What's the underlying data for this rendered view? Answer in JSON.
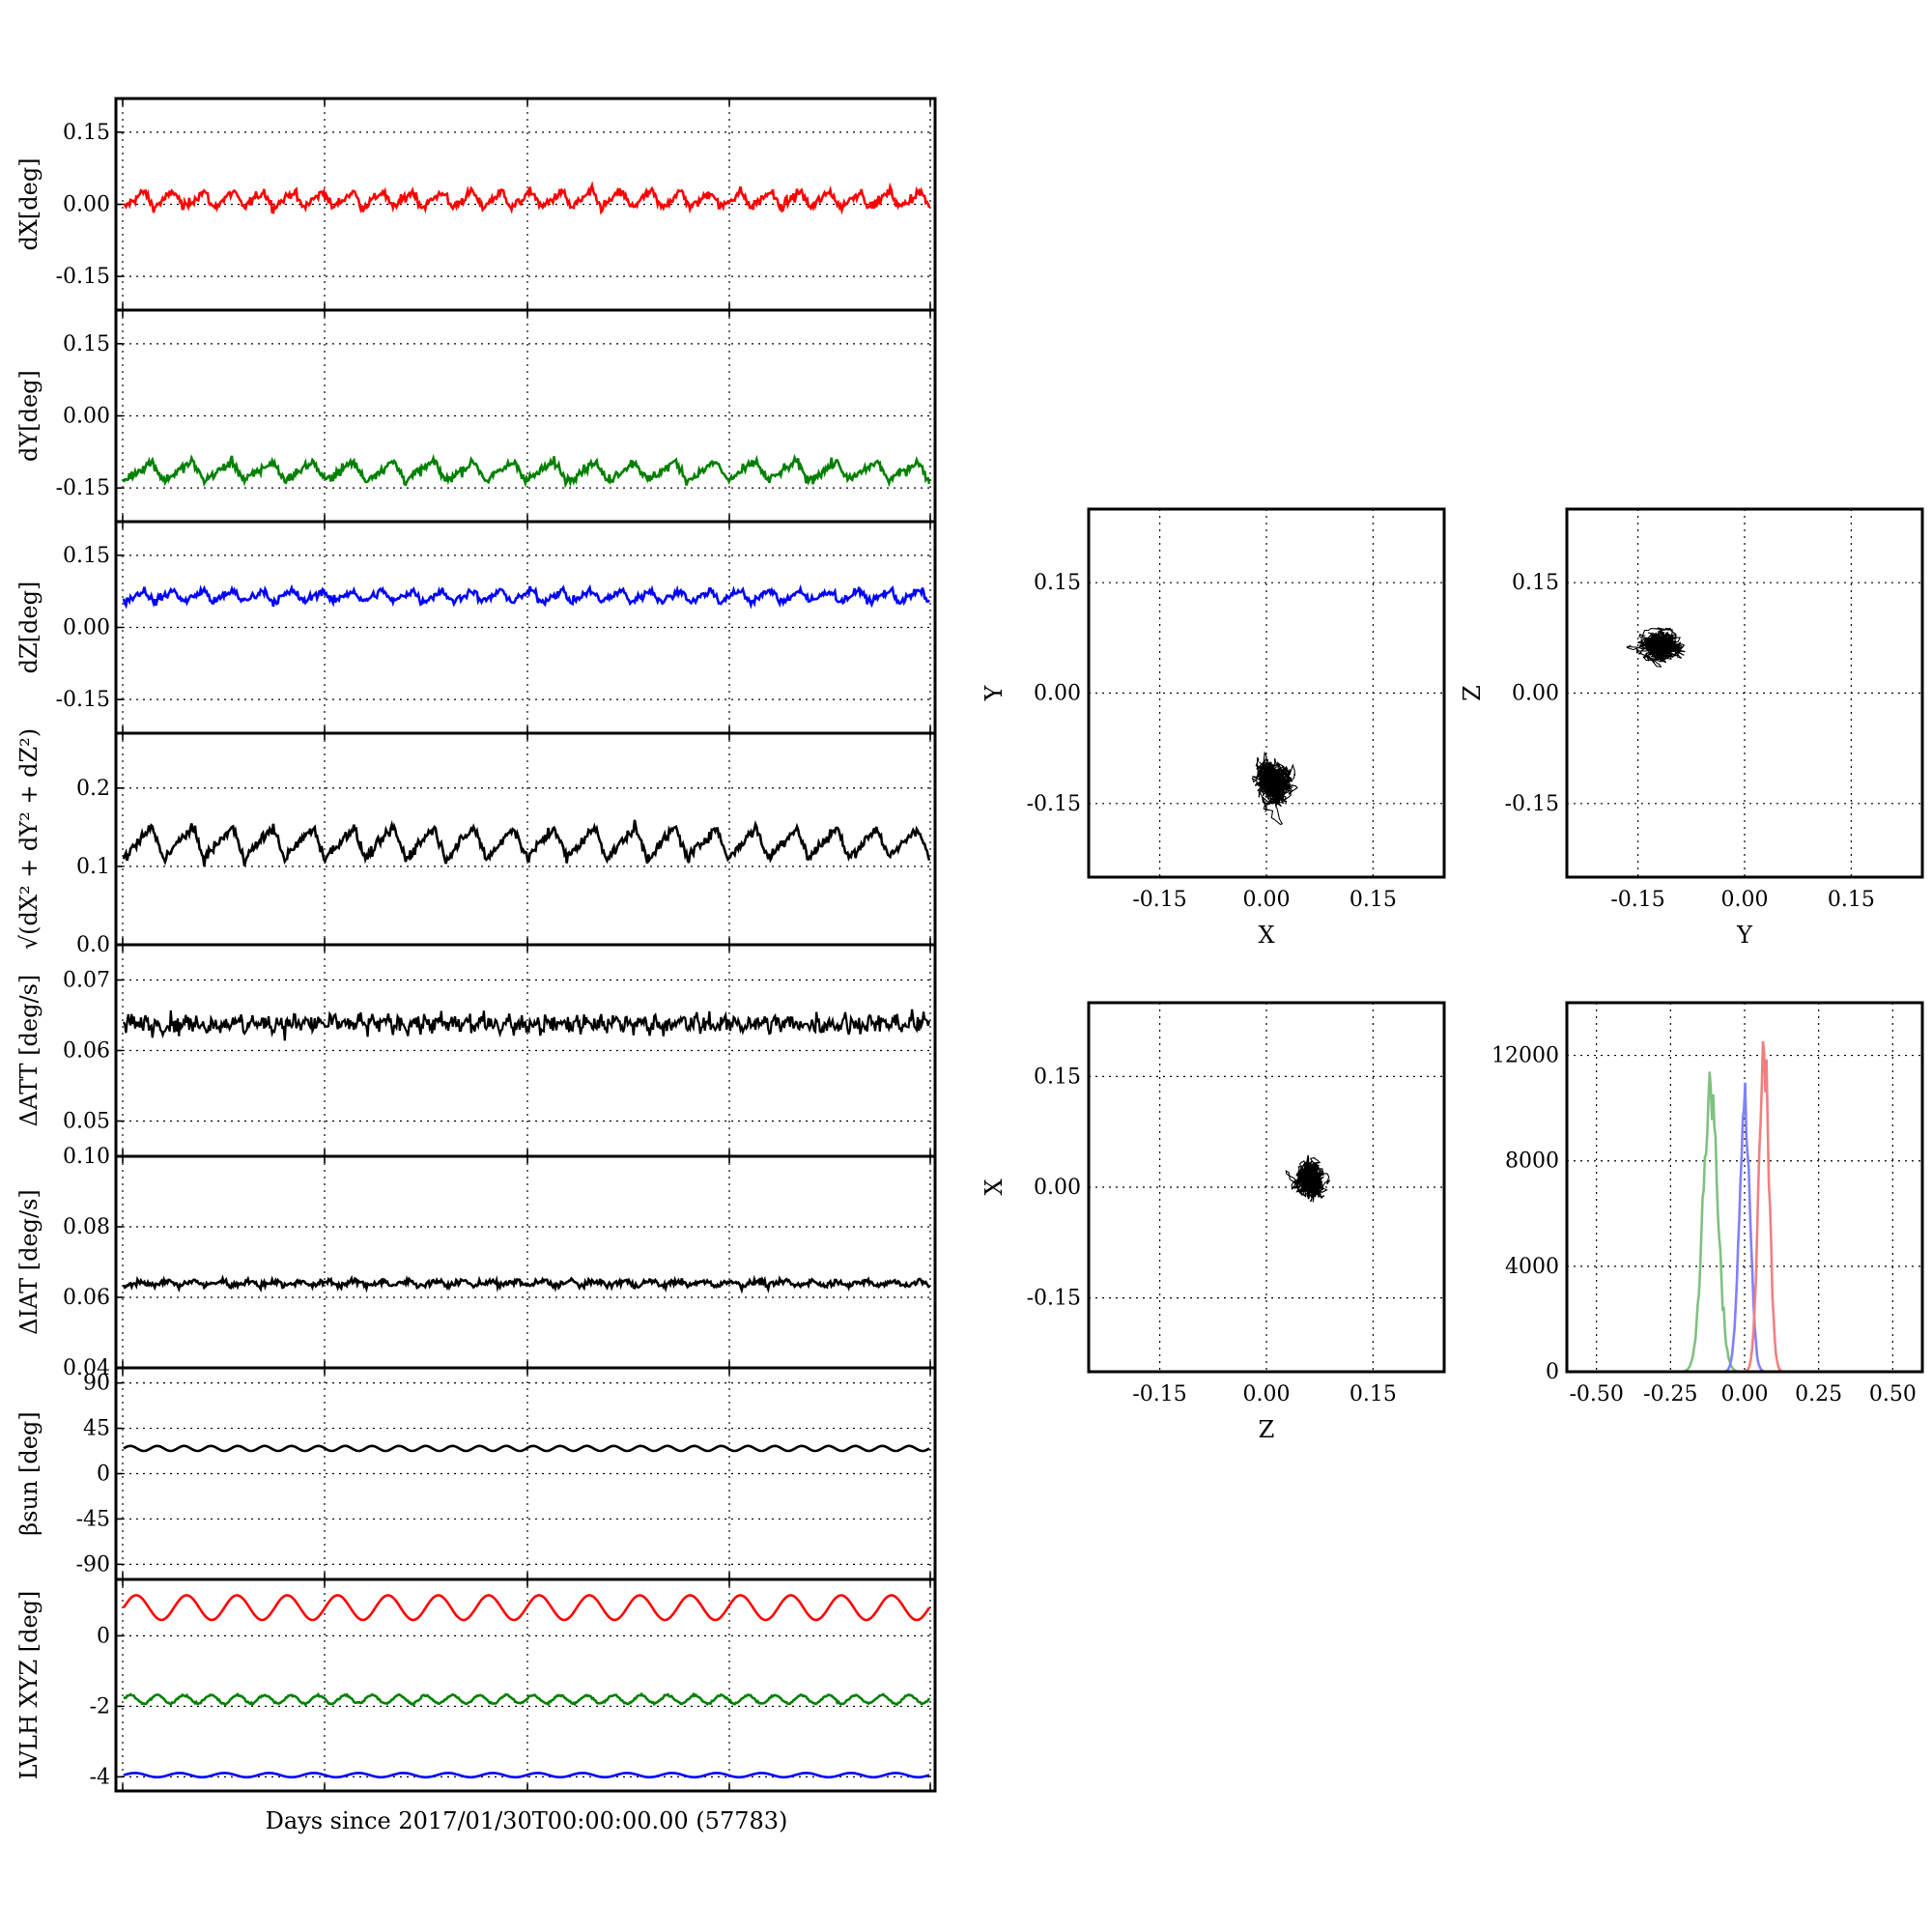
{
  "figure": {
    "x_label": "Days since 2017/01/30T00:00:00.00 (57783)"
  },
  "colors": {
    "red": "#ff0000",
    "green": "#008000",
    "blue": "#0000ff",
    "black": "#000000",
    "hist_red": "#f08080",
    "hist_green": "#80c080",
    "hist_blue": "#8080ff"
  },
  "chart_data": [
    {
      "id": "dX",
      "type": "line",
      "ylabel": "dX[deg]",
      "ylim": [
        -0.22,
        0.22
      ],
      "yticks": [
        "0.15",
        "0.00",
        "-0.15"
      ],
      "ytick_values": [
        0.15,
        0.0,
        -0.15
      ],
      "grid": true,
      "series": [
        {
          "color": "red",
          "mean": 0.01,
          "amp": 0.035,
          "noise": 0.007,
          "periods": 27
        }
      ]
    },
    {
      "id": "dY",
      "type": "line",
      "ylabel": "dY[deg]",
      "ylim": [
        -0.22,
        0.22
      ],
      "yticks": [
        "0.15",
        "0.00",
        "-0.15"
      ],
      "ytick_values": [
        0.15,
        0.0,
        -0.15
      ],
      "grid": true,
      "series": [
        {
          "color": "green",
          "mean": -0.115,
          "amp": 0.04,
          "noise": 0.007,
          "periods": 20
        }
      ]
    },
    {
      "id": "dZ",
      "type": "line",
      "ylabel": "dZ[deg]",
      "ylim": [
        -0.22,
        0.22
      ],
      "yticks": [
        "0.15",
        "0.00",
        "-0.15"
      ],
      "ytick_values": [
        0.15,
        0.0,
        -0.15
      ],
      "grid": true,
      "series": [
        {
          "color": "blue",
          "mean": 0.065,
          "amp": 0.025,
          "noise": 0.006,
          "periods": 27
        }
      ]
    },
    {
      "id": "norm",
      "type": "line",
      "ylabel": "√(dX² + dY² + dZ²)",
      "ylim": [
        0.0,
        0.27
      ],
      "yticks": [
        "0.2",
        "0.1",
        "0.0"
      ],
      "ytick_values": [
        0.2,
        0.1,
        0.0
      ],
      "grid": true,
      "series": [
        {
          "color": "black",
          "mean": 0.13,
          "amp": 0.04,
          "noise": 0.005,
          "periods": 20
        }
      ]
    },
    {
      "id": "datt",
      "type": "line",
      "ylabel": "ΔATT [deg/s]",
      "ylim": [
        0.045,
        0.075
      ],
      "yticks": [
        "0.07",
        "0.06",
        "0.05"
      ],
      "ytick_values": [
        0.07,
        0.06,
        0.05
      ],
      "grid": true,
      "series": [
        {
          "color": "black",
          "mean": 0.0638,
          "amp": 0.0012,
          "noise": 0.0009,
          "periods": 60
        }
      ]
    },
    {
      "id": "diat",
      "type": "line",
      "ylabel": "ΔIAT [deg/s]",
      "ylim": [
        0.04,
        0.1
      ],
      "yticks": [
        "0.10",
        "0.08",
        "0.06",
        "0.04"
      ],
      "ytick_values": [
        0.1,
        0.08,
        0.06,
        0.04
      ],
      "grid": true,
      "series": [
        {
          "color": "black",
          "mean": 0.064,
          "amp": 0.0015,
          "noise": 0.0006,
          "periods": 30
        }
      ]
    },
    {
      "id": "beta",
      "type": "line",
      "ylabel": "βsun [deg]",
      "ylim": [
        -105,
        105
      ],
      "yticks": [
        "90",
        "45",
        "0",
        "-45",
        "-90"
      ],
      "ytick_values": [
        90,
        45,
        0,
        -45,
        -90
      ],
      "grid": true,
      "series": [
        {
          "color": "black",
          "mean": 25,
          "amp": 2.5,
          "noise": 0,
          "periods": 30
        }
      ]
    },
    {
      "id": "lvlh",
      "type": "line",
      "ylabel": "LVLH XYZ [deg]",
      "ylim": [
        -4.4,
        1.6
      ],
      "yticks": [
        "0",
        "-2",
        "-4"
      ],
      "ytick_values": [
        0,
        -2,
        -4
      ],
      "grid": true,
      "series": [
        {
          "color": "red",
          "mean": 0.8,
          "amp": 0.35,
          "noise": 0,
          "periods": 16
        },
        {
          "color": "green",
          "mean": -1.8,
          "amp": 0.12,
          "noise": 0.02,
          "periods": 30
        },
        {
          "color": "blue",
          "mean": -3.95,
          "amp": 0.06,
          "noise": 0,
          "periods": 18
        }
      ]
    },
    {
      "id": "xy",
      "type": "scatter",
      "xlabel": "X",
      "ylabel": "Y",
      "xlim": [
        -0.25,
        0.25
      ],
      "ylim": [
        -0.25,
        0.25
      ],
      "ticks": [
        "-0.15",
        "0.00",
        "0.15"
      ],
      "tick_values": [
        -0.15,
        0.0,
        0.15
      ],
      "center": [
        0.01,
        -0.115
      ],
      "spread": [
        0.018,
        0.022
      ],
      "grid": true
    },
    {
      "id": "yz",
      "type": "scatter",
      "xlabel": "Y",
      "ylabel": "Z",
      "xlim": [
        -0.25,
        0.25
      ],
      "ylim": [
        -0.25,
        0.25
      ],
      "ticks": [
        "-0.15",
        "0.00",
        "0.15"
      ],
      "tick_values": [
        -0.15,
        0.0,
        0.15
      ],
      "center": [
        -0.115,
        0.065
      ],
      "spread": [
        0.022,
        0.013
      ],
      "grid": true
    },
    {
      "id": "zx",
      "type": "scatter",
      "xlabel": "Z",
      "ylabel": "X",
      "xlim": [
        -0.25,
        0.25
      ],
      "ylim": [
        -0.25,
        0.25
      ],
      "ticks": [
        "-0.15",
        "0.00",
        "0.15"
      ],
      "tick_values": [
        -0.15,
        0.0,
        0.15
      ],
      "center": [
        0.065,
        0.01
      ],
      "spread": [
        0.013,
        0.018
      ],
      "grid": true
    },
    {
      "id": "hist",
      "type": "histogram",
      "xlim": [
        -0.6,
        0.6
      ],
      "ylim": [
        0,
        14000
      ],
      "xticks": [
        "-0.50",
        "-0.25",
        "0.00",
        "0.25",
        "0.50"
      ],
      "xtick_values": [
        -0.5,
        -0.25,
        0.0,
        0.25,
        0.5
      ],
      "yticks": [
        "12000",
        "8000",
        "4000",
        "0"
      ],
      "ytick_values": [
        12000,
        8000,
        4000,
        0
      ],
      "grid": true,
      "series": [
        {
          "color": "hist_green",
          "center": -0.115,
          "sigma": 0.025,
          "peak": 10600
        },
        {
          "color": "hist_blue",
          "center": 0.0,
          "sigma": 0.018,
          "peak": 10200
        },
        {
          "color": "hist_red",
          "center": 0.065,
          "sigma": 0.017,
          "peak": 12400
        }
      ]
    }
  ]
}
